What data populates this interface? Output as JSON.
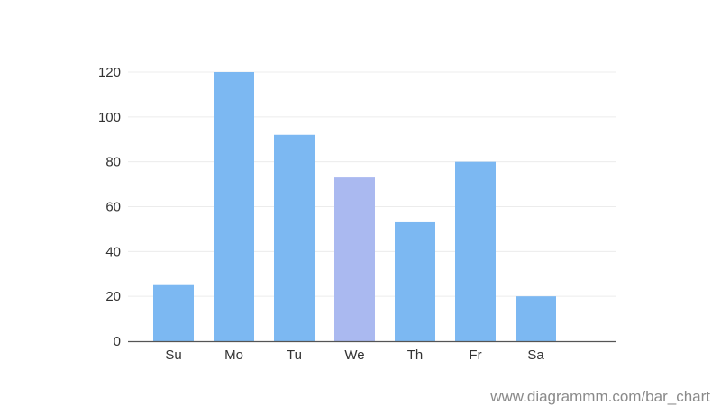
{
  "chart_data": {
    "type": "bar",
    "title": "",
    "xlabel": "",
    "ylabel": "",
    "categories": [
      "Su",
      "Mo",
      "Tu",
      "We",
      "Th",
      "Fr",
      "Sa"
    ],
    "values": [
      25,
      120,
      92,
      73,
      53,
      80,
      20
    ],
    "highlighted_category": "We",
    "ylim": [
      0,
      120
    ],
    "yticks": [
      0,
      20,
      40,
      60,
      80,
      100,
      120
    ],
    "grid": "horizontal",
    "legend": "none",
    "colors": {
      "bar": "#7cb8f2",
      "bar_highlight": "#aab9f0",
      "grid": "#ececec",
      "axis": "#555555",
      "text": "#333333"
    }
  },
  "watermark": "www.diagrammm.com/bar_chart"
}
